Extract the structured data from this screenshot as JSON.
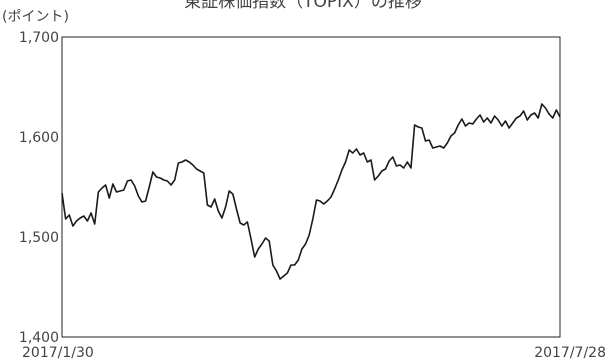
{
  "chart_data": {
    "type": "line",
    "title": "東証株価指数（TOPIX）の推移",
    "ylabel": "(ポイント)",
    "xlabel": "",
    "ylim": [
      1400,
      1700
    ],
    "yticks": [
      "1,400",
      "1,500",
      "1,600",
      "1,700"
    ],
    "yticks_values": [
      1400,
      1500,
      1600,
      1700
    ],
    "x_tick_labels": [
      "2017/1/30",
      "2017/7/28"
    ],
    "grid": false,
    "series": [
      {
        "color": "#1a1a1a",
        "values": [
          1544,
          1518,
          1522,
          1511,
          1516,
          1519,
          1521,
          1516,
          1524,
          1513,
          1545,
          1549,
          1552,
          1539,
          1553,
          1545,
          1546,
          1547,
          1556,
          1557,
          1551,
          1541,
          1535,
          1536,
          1550,
          1565,
          1560,
          1559,
          1557,
          1556,
          1552,
          1557,
          1574,
          1575,
          1577,
          1575,
          1572,
          1568,
          1566,
          1564,
          1532,
          1530,
          1538,
          1526,
          1519,
          1530,
          1546,
          1543,
          1528,
          1514,
          1512,
          1515,
          1498,
          1480,
          1488,
          1493,
          1499,
          1496,
          1472,
          1466,
          1458,
          1461,
          1464,
          1472,
          1472,
          1477,
          1488,
          1493,
          1502,
          1518,
          1537,
          1536,
          1533,
          1536,
          1540,
          1548,
          1557,
          1567,
          1575,
          1587,
          1584,
          1588,
          1582,
          1584,
          1575,
          1577,
          1557,
          1561,
          1566,
          1568,
          1576,
          1580,
          1571,
          1572,
          1569,
          1575,
          1569,
          1612,
          1610,
          1609,
          1596,
          1597,
          1589,
          1590,
          1591,
          1589,
          1594,
          1601,
          1604,
          1612,
          1618,
          1611,
          1614,
          1613,
          1618,
          1622,
          1615,
          1619,
          1614,
          1621,
          1617,
          1611,
          1616,
          1609,
          1614,
          1619,
          1621,
          1626,
          1617,
          1622,
          1624,
          1619,
          1633,
          1629,
          1623,
          1619,
          1627,
          1620
        ]
      }
    ]
  }
}
